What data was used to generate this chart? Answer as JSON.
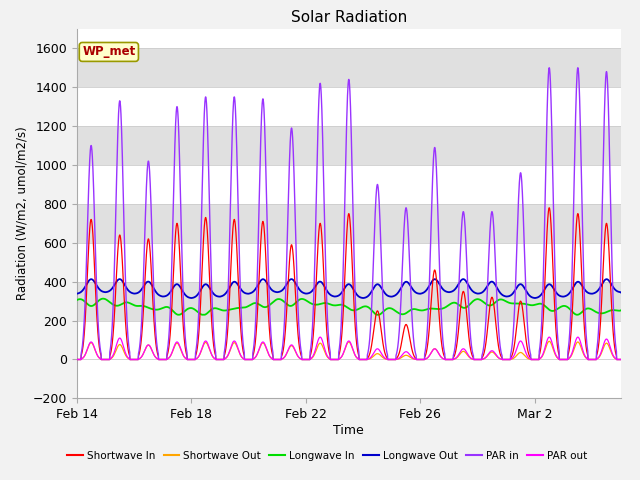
{
  "title": "Solar Radiation",
  "xlabel": "Time",
  "ylabel": "Radiation (W/m2, umol/m2/s)",
  "ylim": [
    -200,
    1700
  ],
  "yticks": [
    -200,
    0,
    200,
    400,
    600,
    800,
    1000,
    1200,
    1400,
    1600
  ],
  "background_color": "#f2f2f2",
  "plot_bg_color": "#ffffff",
  "legend_labels": [
    "Shortwave In",
    "Shortwave Out",
    "Longwave In",
    "Longwave Out",
    "PAR in",
    "PAR out"
  ],
  "legend_colors": [
    "#ff0000",
    "#ffa500",
    "#00dd00",
    "#0000cc",
    "#9933ff",
    "#ff00ff"
  ],
  "label_color": "#aa0000",
  "label_text": "WP_met",
  "label_bg": "#ffffcc",
  "label_border": "#999900",
  "n_days": 19,
  "xtick_labels": [
    "Feb 14",
    "Feb 18",
    "Feb 22",
    "Feb 26",
    "Mar 2"
  ],
  "xtick_positions": [
    0,
    4,
    8,
    12,
    16
  ],
  "stripe_color": "#e0e0e0",
  "stripe_ranges": [
    [
      200,
      400
    ],
    [
      600,
      800
    ],
    [
      1000,
      1200
    ],
    [
      1400,
      1600
    ]
  ]
}
